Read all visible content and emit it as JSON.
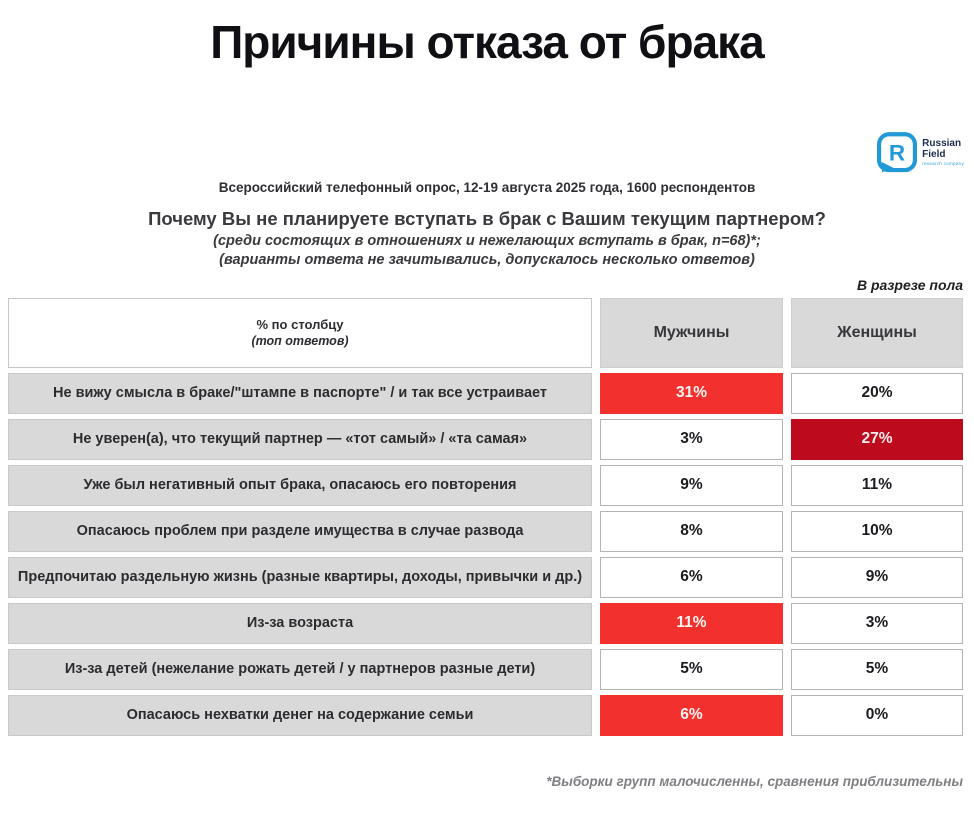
{
  "title": "Причины отказа от брака",
  "logo": {
    "name_line1": "Russian",
    "name_line2": "Field",
    "tagline": "research company",
    "monogram": "R"
  },
  "intro": {
    "subtitle": "Всероссийский телефонный опрос, 12-19 августа 2025 года, 1600 респондентов",
    "question": "Почему Вы не планируете вступать в брак с Вашим текущим партнером?",
    "note1": "(среди состоящих в отношениях и нежелающих вступать в брак, n=68)*;",
    "note2": "(варианты ответа не зачитывались, допускалось несколько ответов)"
  },
  "breakdown_label": "В разрезе пола",
  "footnote": "*Выборки групп малочисленны, сравнения приблизительны",
  "table": {
    "header": {
      "col1_line1": "% по столбцу",
      "col1_line2": "(топ ответов)",
      "men_label": "Мужчины",
      "women_label": "Женщины"
    },
    "rows": [
      {
        "label": "Не вижу смысла в браке/\"штампе в паспорте\" / и так все устраивает",
        "men": "31%",
        "women": "20%",
        "men_hl": "red",
        "women_hl": null
      },
      {
        "label": "Не уверен(а), что текущий партнер — «тот самый» / «та самая»",
        "men": "3%",
        "women": "27%",
        "men_hl": null,
        "women_hl": "darkred"
      },
      {
        "label": "Уже был негативный опыт брака, опасаюсь его повторения",
        "men": "9%",
        "women": "11%",
        "men_hl": null,
        "women_hl": null
      },
      {
        "label": "Опасаюсь проблем при разделе имущества в случае развода",
        "men": "8%",
        "women": "10%",
        "men_hl": null,
        "women_hl": null
      },
      {
        "label": "Предпочитаю раздельную жизнь (разные квартиры, доходы, привычки и др.)",
        "men": "6%",
        "women": "9%",
        "men_hl": null,
        "women_hl": null
      },
      {
        "label": "Из-за возраста",
        "men": "11%",
        "women": "3%",
        "men_hl": "red",
        "women_hl": null
      },
      {
        "label": "Из-за детей (нежелание рожать детей / у партнеров разные дети)",
        "men": "5%",
        "women": "5%",
        "men_hl": null,
        "women_hl": null
      },
      {
        "label": "Опасаюсь нехватки денег на содержание семьи",
        "men": "6%",
        "women": "0%",
        "men_hl": "red",
        "women_hl": null
      }
    ]
  },
  "colors": {
    "highlight_red": "#F2302E",
    "highlight_darkred": "#BD0A1C",
    "cell_gray": "#D9D9D9",
    "brand_blue": "#2199D6"
  },
  "chart_data": {
    "type": "table",
    "title": "Причины отказа от брака",
    "subtitle": "Всероссийский телефонный опрос, 12-19 августа 2025 года, 1600 респондентов",
    "question": "Почему Вы не планируете вступать в брак с Вашим текущим партнером? (среди состоящих в отношениях и нежелающих вступать в брак, n=68)*; (варианты ответа не зачитывались, допускалось несколько ответов)",
    "breakdown": "В разрезе пола",
    "unit": "% по столбцу (топ ответов)",
    "categories": [
      "Не вижу смысла в браке/\"штампе в паспорте\" / и так все устраивает",
      "Не уверен(а), что текущий партнер — «тот самый» / «та самая»",
      "Уже был негативный опыт брака, опасаюсь его повторения",
      "Опасаюсь проблем при разделе имущества в случае развода",
      "Предпочитаю раздельную жизнь (разные квартиры, доходы, привычки и др.)",
      "Из-за возраста",
      "Из-за детей (нежелание рожать детей / у партнеров разные дети)",
      "Опасаюсь нехватки денег на содержание семьи"
    ],
    "series": [
      {
        "name": "Мужчины",
        "values": [
          31,
          3,
          9,
          8,
          6,
          11,
          5,
          6
        ]
      },
      {
        "name": "Женщины",
        "values": [
          20,
          27,
          11,
          10,
          9,
          3,
          5,
          0
        ]
      }
    ],
    "highlighted_cells": [
      {
        "row": 0,
        "series": "Мужчины",
        "style": "red"
      },
      {
        "row": 1,
        "series": "Женщины",
        "style": "darkred"
      },
      {
        "row": 5,
        "series": "Мужчины",
        "style": "red"
      },
      {
        "row": 7,
        "series": "Мужчины",
        "style": "red"
      }
    ],
    "footnote": "*Выборки групп малочисленны, сравнения приблизительны"
  }
}
